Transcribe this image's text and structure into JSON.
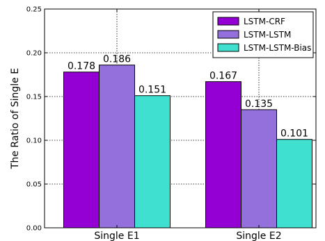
{
  "chart_data": {
    "type": "bar",
    "title": "",
    "xlabel": "",
    "ylabel": "The Ratio of Single E",
    "categories": [
      "Single E1",
      "Single E2"
    ],
    "series": [
      {
        "name": "LSTM-CRF",
        "values": [
          0.178,
          0.167
        ],
        "labels": [
          "0.178",
          "0.167"
        ],
        "color": "#9400d3"
      },
      {
        "name": "LSTM-LSTM",
        "values": [
          0.186,
          0.135
        ],
        "labels": [
          "0.186",
          "0.135"
        ],
        "color": "#9370db"
      },
      {
        "name": "LSTM-LSTM-Bias",
        "values": [
          0.151,
          0.101
        ],
        "labels": [
          "0.151",
          "0.101"
        ],
        "color": "#40e0d0"
      }
    ],
    "ylim": [
      0,
      0.25
    ],
    "yticks": [
      "0.00",
      "0.05",
      "0.10",
      "0.15",
      "0.20",
      "0.25"
    ],
    "grid": "dotted",
    "legend_position": "top-right"
  }
}
